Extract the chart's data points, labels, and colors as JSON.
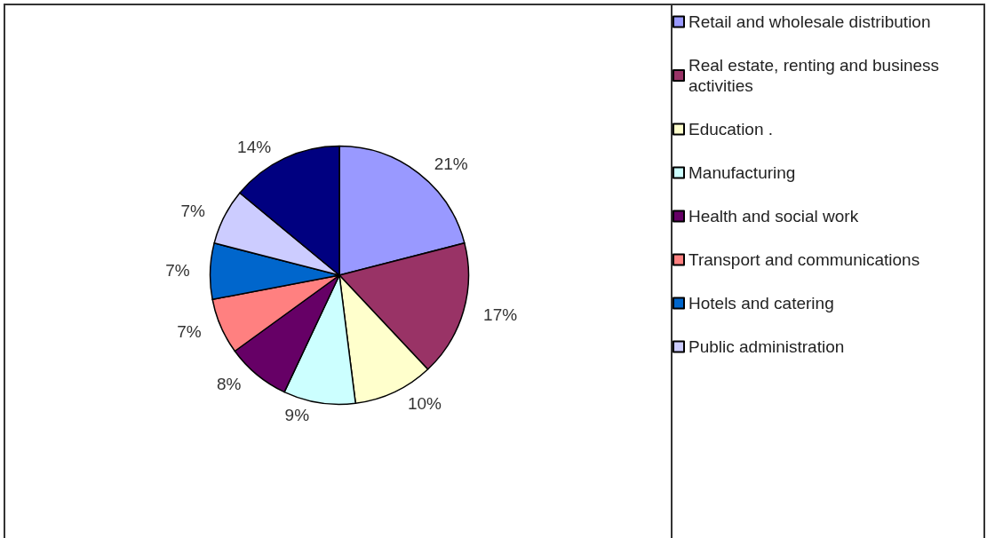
{
  "chart_data": {
    "type": "pie",
    "categories": [
      "Retail and wholesale distribution",
      "Real estate, renting and business activities",
      "Education .",
      "Manufacturing",
      "Health and social work",
      "Transport and communications",
      "Hotels and catering",
      "Public administration",
      null
    ],
    "values": [
      21,
      17,
      10,
      9,
      8,
      7,
      7,
      7,
      14
    ],
    "value_labels": [
      "21%",
      "17%",
      "10%",
      "9%",
      "8%",
      "7%",
      "7%",
      "7%",
      "14%"
    ],
    "colors": [
      "#9999ff",
      "#993366",
      "#ffffcc",
      "#ccffff",
      "#660066",
      "#ff8080",
      "#0066cc",
      "#ccccff",
      "#000080"
    ],
    "legend": "right"
  }
}
